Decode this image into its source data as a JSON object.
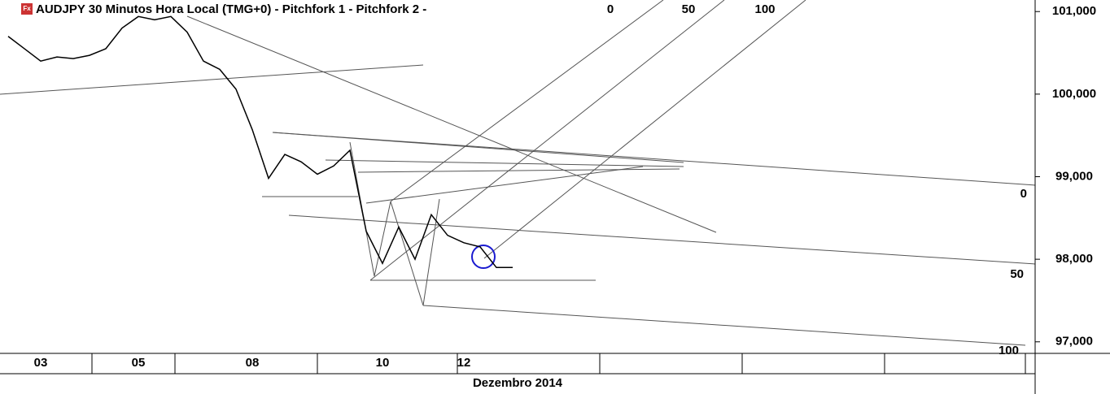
{
  "chart_data": {
    "type": "line",
    "icon": "Fx",
    "title": "AUDJPY 30 Minutos Hora Local (TMG+0)  -  Pitchfork 1 -  Pitchfork 2 -",
    "x_label": "Dezembro 2014",
    "annotations": [
      "0",
      "50",
      "100",
      "0",
      "50",
      "100"
    ],
    "categories": [
      null,
      null,
      "03",
      null,
      null,
      null,
      null,
      null,
      "05",
      null,
      null,
      null,
      null,
      null,
      null,
      "08",
      null,
      null,
      null,
      null,
      null,
      null,
      null,
      "10",
      null,
      null,
      null,
      null,
      "12",
      null,
      null,
      null
    ],
    "series": [
      {
        "name": "AUDJPY",
        "color": "#000000",
        "values": [
          100.7,
          100.55,
          100.4,
          100.45,
          100.43,
          100.47,
          100.55,
          100.8,
          100.94,
          100.9,
          100.94,
          100.75,
          100.4,
          100.3,
          100.06,
          99.57,
          98.98,
          99.27,
          99.18,
          99.03,
          99.13,
          99.32,
          98.34,
          97.95,
          98.39,
          98.0,
          98.54,
          98.29,
          98.2,
          98.15,
          97.9,
          97.9
        ]
      }
    ],
    "ylim": [
      96.86,
      101.14
    ],
    "yticks": [
      {
        "value": 97,
        "label": "97,000"
      },
      {
        "value": 98,
        "label": "98,000"
      },
      {
        "value": 99,
        "label": "99,000"
      },
      {
        "value": 100,
        "label": "100,000"
      },
      {
        "value": 101,
        "label": "101,000"
      }
    ]
  }
}
